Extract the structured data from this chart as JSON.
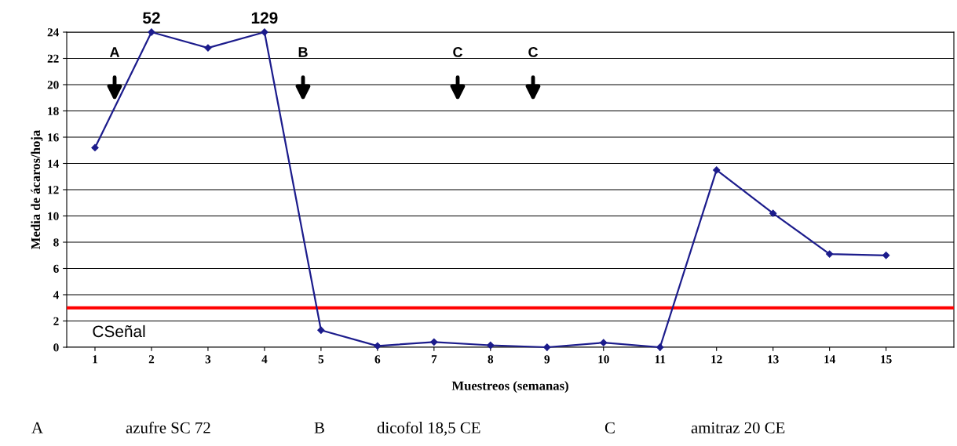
{
  "chart_data": {
    "type": "line",
    "xlabel": "Muestreos (semanas)",
    "ylabel": "Media de ácaros/hoja",
    "x": [
      1,
      2,
      3,
      4,
      5,
      6,
      7,
      8,
      9,
      10,
      11,
      12,
      13,
      14,
      15
    ],
    "series": [
      {
        "color": "#1c1c8c",
        "values": [
          15.2,
          24,
          22.8,
          24,
          1.3,
          0.1,
          0.4,
          0.15,
          0,
          0.35,
          0,
          13.5,
          10.2,
          7.1,
          7.0
        ]
      }
    ],
    "xlim": [
      0.5,
      16.2
    ],
    "xticks": [
      1,
      2,
      3,
      4,
      5,
      6,
      7,
      8,
      9,
      10,
      11,
      12,
      13,
      14,
      15
    ],
    "ylim": [
      0,
      24
    ],
    "yticks": [
      0,
      2,
      4,
      6,
      8,
      10,
      12,
      14,
      16,
      18,
      20,
      22,
      24
    ],
    "grid": "y",
    "marker": "diamond",
    "line_style": "solid",
    "ref_lines": [
      {
        "axis": "y",
        "value": 3,
        "label": "CSeñal",
        "color": "#ff0000"
      }
    ],
    "annotations": [
      {
        "text": "52",
        "x": 2,
        "y": 24
      },
      {
        "text": "129",
        "x": 4,
        "y": 24
      },
      "A",
      "B",
      "C",
      "C",
      "A",
      "azufre SC 72",
      "B",
      "dicofol 18,5 CE",
      "C",
      "amitraz 20 CE"
    ]
  }
}
